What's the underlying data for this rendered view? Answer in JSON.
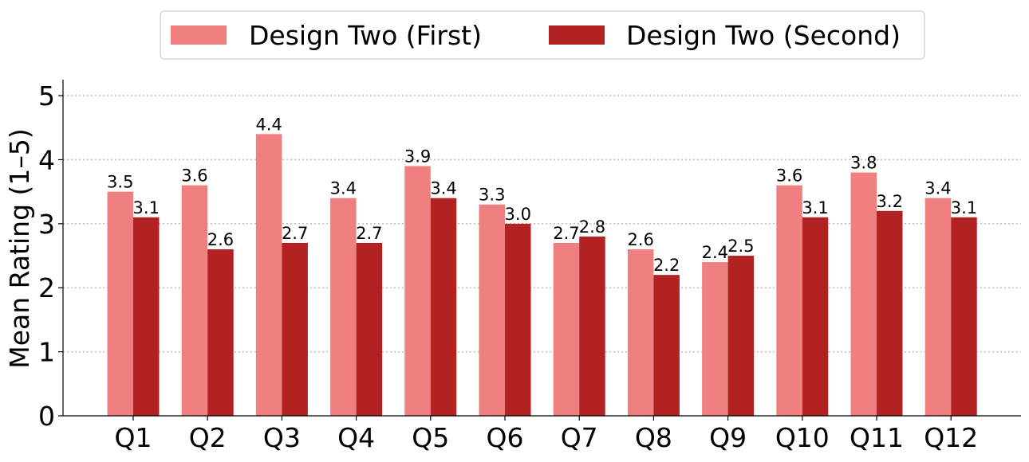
{
  "chart_data": {
    "type": "bar",
    "categories": [
      "Q1",
      "Q2",
      "Q3",
      "Q4",
      "Q5",
      "Q6",
      "Q7",
      "Q8",
      "Q9",
      "Q10",
      "Q11",
      "Q12"
    ],
    "series": [
      {
        "name": "Design Two (First)",
        "color": "#f08080",
        "values": [
          3.5,
          3.6,
          4.4,
          3.4,
          3.9,
          3.3,
          2.7,
          2.6,
          2.4,
          3.6,
          3.8,
          3.4
        ]
      },
      {
        "name": "Design Two (Second)",
        "color": "#b22222",
        "values": [
          3.1,
          2.6,
          2.7,
          2.7,
          3.4,
          3.0,
          2.8,
          2.2,
          2.5,
          3.1,
          3.2,
          3.1
        ]
      }
    ],
    "title": "",
    "xlabel": "",
    "ylabel": "Mean Rating (1–5)",
    "ylim": [
      0,
      5.25
    ],
    "yticks": [
      0,
      1,
      2,
      3,
      4,
      5
    ],
    "grid": "horizontal dotted",
    "legend_position": "top-center",
    "show_value_labels": true
  }
}
